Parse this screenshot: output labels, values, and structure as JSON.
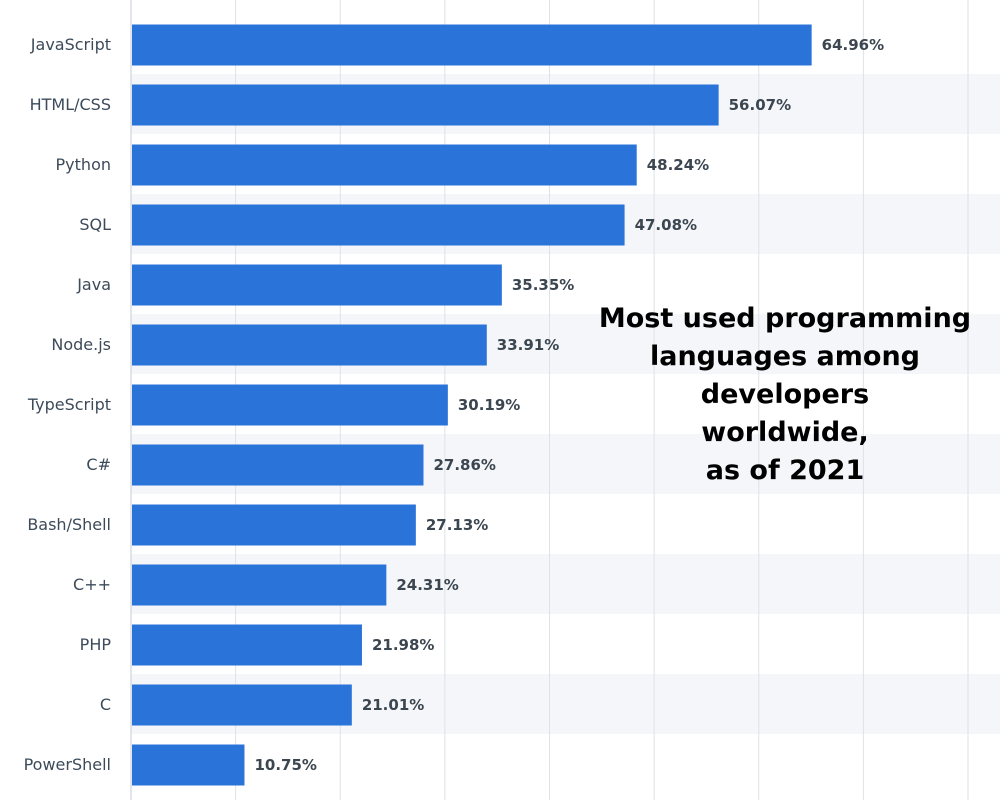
{
  "chart_data": {
    "type": "bar",
    "orientation": "horizontal",
    "title": "Most used programming\nlanguages among\ndevelopers\nworldwide,\nas of 2021",
    "categories": [
      "JavaScript",
      "HTML/CSS",
      "Python",
      "SQL",
      "Java",
      "Node.js",
      "TypeScript",
      "C#",
      "Bash/Shell",
      "C++",
      "PHP",
      "C",
      "PowerShell"
    ],
    "values": [
      64.96,
      56.07,
      48.24,
      47.08,
      35.35,
      33.91,
      30.19,
      27.86,
      27.13,
      24.31,
      21.98,
      21.01,
      10.75
    ],
    "value_labels": [
      "64.96%",
      "56.07%",
      "48.24%",
      "47.08%",
      "35.35%",
      "33.91%",
      "30.19%",
      "27.86%",
      "27.13%",
      "24.31%",
      "21.98%",
      "21.01%",
      "10.75%"
    ],
    "xlim": [
      0,
      80
    ],
    "grid": true,
    "legend": "none",
    "bar_color": "#2a73d9",
    "alt_row_color": "#f4f6f9",
    "grid_color": "#dde2e8"
  }
}
